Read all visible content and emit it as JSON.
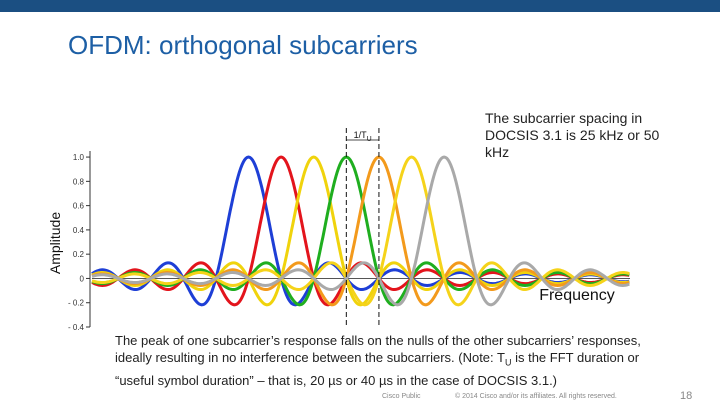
{
  "title": "OFDM: orthogonal subcarriers",
  "callout": "The subcarrier spacing in DOCSIS 3.1 is 25 kHz or 50 kHz",
  "note": {
    "before": "The peak of one subcarrier’s response falls on the nulls of the other subcarriers’ responses, ideally resulting in no interference between the subcarriers. (Note: T",
    "sub": "U",
    "after": " is the FFT duration or “useful symbol duration” – that is, 20 µs or 40 µs in the case of DOCSIS 3.1.)"
  },
  "footer": {
    "classification": "Cisco Public",
    "copyright": "© 2014 Cisco and/or its affiliates. All rights reserved.",
    "page": "18"
  },
  "chart_data": {
    "type": "sinc",
    "ylabel": "Amplitude",
    "xlabel": "Frequency",
    "xlim": [
      -7.8,
      8.7
    ],
    "ylim": [
      -0.4,
      1.05
    ],
    "yticks": [
      {
        "value": 1,
        "label": "1.0"
      },
      0.8,
      0.6,
      0.4,
      0.2,
      0,
      {
        "value": -0.2,
        "label": "- 0.2"
      },
      {
        "value": -0.4,
        "label": "- 0.4"
      }
    ],
    "spacing_marker": {
      "label": "1/T",
      "sub": "U",
      "from": 0,
      "to": 1
    },
    "series": [
      {
        "color": "#1e3fd6",
        "center": -3,
        "peak": 1
      },
      {
        "color": "#e3141c",
        "center": -2,
        "peak": 1
      },
      {
        "color": "#f0d30c",
        "center": -1,
        "peak": 1
      },
      {
        "color": "#1fae1f",
        "center": 0,
        "peak": 1
      },
      {
        "color": "#f39a1c",
        "center": 1,
        "peak": 1
      },
      {
        "color": "#f5d31a",
        "center": 2,
        "peak": 1
      },
      {
        "color": "#a9a9a9",
        "center": 3,
        "peak": 1
      }
    ]
  }
}
